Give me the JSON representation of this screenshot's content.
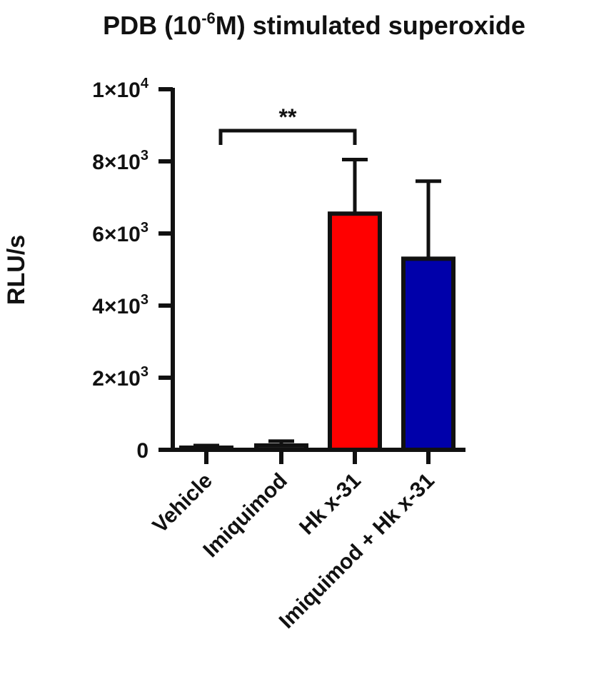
{
  "chart_data": {
    "type": "bar",
    "title": {
      "prefix": "PDB (10",
      "sup": "-6",
      "suffix": "M) stimulated superoxide"
    },
    "ylabel": "RLU/s",
    "xlabel": "",
    "ylim": [
      0,
      10000
    ],
    "yticks": [
      {
        "value": 0,
        "mantissa": "0",
        "exp": ""
      },
      {
        "value": 2000,
        "mantissa": "2×10",
        "exp": "3"
      },
      {
        "value": 4000,
        "mantissa": "4×10",
        "exp": "3"
      },
      {
        "value": 6000,
        "mantissa": "6×10",
        "exp": "3"
      },
      {
        "value": 8000,
        "mantissa": "8×10",
        "exp": "3"
      },
      {
        "value": 10000,
        "mantissa": "1×10",
        "exp": "4"
      }
    ],
    "categories": [
      "Vehicle",
      "Imiquimod",
      "Hk x-31",
      "Imiquimod + Hk x-31"
    ],
    "values": [
      60,
      120,
      6550,
      5300
    ],
    "errors": [
      60,
      120,
      1500,
      2150
    ],
    "colors": [
      "#ffffff",
      "#ffffff",
      "#ff0000",
      "#0000aa"
    ],
    "grid": false,
    "legend": "none",
    "significance": [
      {
        "from": 0,
        "to": 2,
        "label": "**"
      }
    ]
  }
}
